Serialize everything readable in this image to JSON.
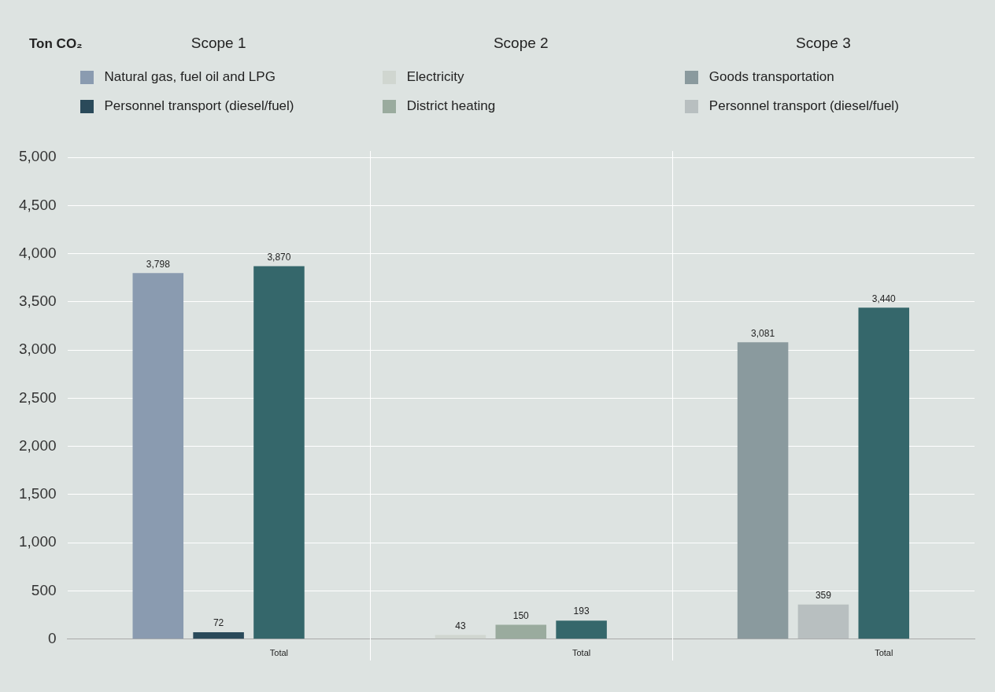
{
  "chart_data": {
    "type": "bar",
    "annotations": [
      "Ton CO₂",
      "Scope 1",
      "Scope 2",
      "Scope 3"
    ],
    "categories": [
      null,
      null,
      null,
      "Total",
      null,
      null,
      null,
      null,
      "Total",
      null,
      null,
      null,
      null,
      "Total",
      null
    ],
    "series": [
      {
        "name": "Natural gas, fuel oil and LPG",
        "color": "#8a9bb0",
        "values": [
          null,
          3798,
          null,
          null,
          null,
          null,
          null,
          null,
          null,
          null,
          null,
          null,
          null,
          null,
          null
        ],
        "value_labels": [
          null,
          "3,798",
          null,
          null,
          null,
          null,
          null,
          null,
          null,
          null,
          null,
          null,
          null,
          null,
          null
        ]
      },
      {
        "name": "Personnel transport (diesel/fuel)",
        "color": "#2a4a5a",
        "values": [
          null,
          null,
          72,
          null,
          null,
          null,
          null,
          null,
          null,
          null,
          null,
          null,
          null,
          null,
          null
        ],
        "value_labels": [
          null,
          null,
          "72",
          null,
          null,
          null,
          null,
          null,
          null,
          null,
          null,
          null,
          null,
          null,
          null
        ]
      },
      {
        "name": "Electricity",
        "color": "#d0d6d0",
        "values": [
          null,
          null,
          null,
          null,
          null,
          null,
          43,
          null,
          null,
          null,
          null,
          null,
          null,
          null,
          null
        ],
        "value_labels": [
          null,
          null,
          null,
          null,
          null,
          null,
          "43",
          null,
          null,
          null,
          null,
          null,
          null,
          null,
          null
        ]
      },
      {
        "name": "District heating",
        "color": "#9aab9e",
        "values": [
          null,
          null,
          null,
          null,
          null,
          null,
          null,
          150,
          null,
          null,
          null,
          null,
          null,
          null,
          null
        ],
        "value_labels": [
          null,
          null,
          null,
          null,
          null,
          null,
          null,
          "150",
          null,
          null,
          null,
          null,
          null,
          null,
          null
        ]
      },
      {
        "name": "Goods transportation",
        "color": "#8a9a9e",
        "values": [
          null,
          null,
          null,
          null,
          null,
          null,
          null,
          null,
          null,
          null,
          null,
          3081,
          null,
          null,
          null
        ],
        "value_labels": [
          null,
          null,
          null,
          null,
          null,
          null,
          null,
          null,
          null,
          null,
          null,
          "3,081",
          null,
          null,
          null
        ]
      },
      {
        "name": "Personnel transport (diesel/fuel)",
        "color": "#b8bfc0",
        "values": [
          null,
          null,
          null,
          null,
          null,
          null,
          null,
          null,
          null,
          null,
          null,
          null,
          359,
          null,
          null
        ],
        "value_labels": [
          null,
          null,
          null,
          null,
          null,
          null,
          null,
          null,
          null,
          null,
          null,
          null,
          "359",
          null,
          null
        ]
      },
      {
        "color": "#35676b",
        "values": [
          null,
          null,
          null,
          3870,
          null,
          null,
          null,
          null,
          193,
          null,
          null,
          null,
          null,
          3440,
          null
        ],
        "value_labels": [
          null,
          null,
          null,
          "3,870",
          null,
          null,
          null,
          null,
          "193",
          null,
          null,
          null,
          null,
          "3,440",
          null
        ]
      }
    ],
    "ylim": [
      0,
      5000
    ],
    "yticks": [
      0,
      500,
      {
        "value": 1000,
        "label": "1,000"
      },
      {
        "value": 1500,
        "label": "1,500"
      },
      {
        "value": 2000,
        "label": "2,000"
      },
      {
        "value": 2500,
        "label": "2,500"
      },
      {
        "value": 3000,
        "label": "3,000"
      },
      {
        "value": 3500,
        "label": "3,500"
      },
      {
        "value": 4000,
        "label": "4,000"
      },
      {
        "value": 4500,
        "label": "4,500"
      },
      {
        "value": 5000,
        "label": "5,000"
      }
    ],
    "grid": "y",
    "legend": "top"
  }
}
